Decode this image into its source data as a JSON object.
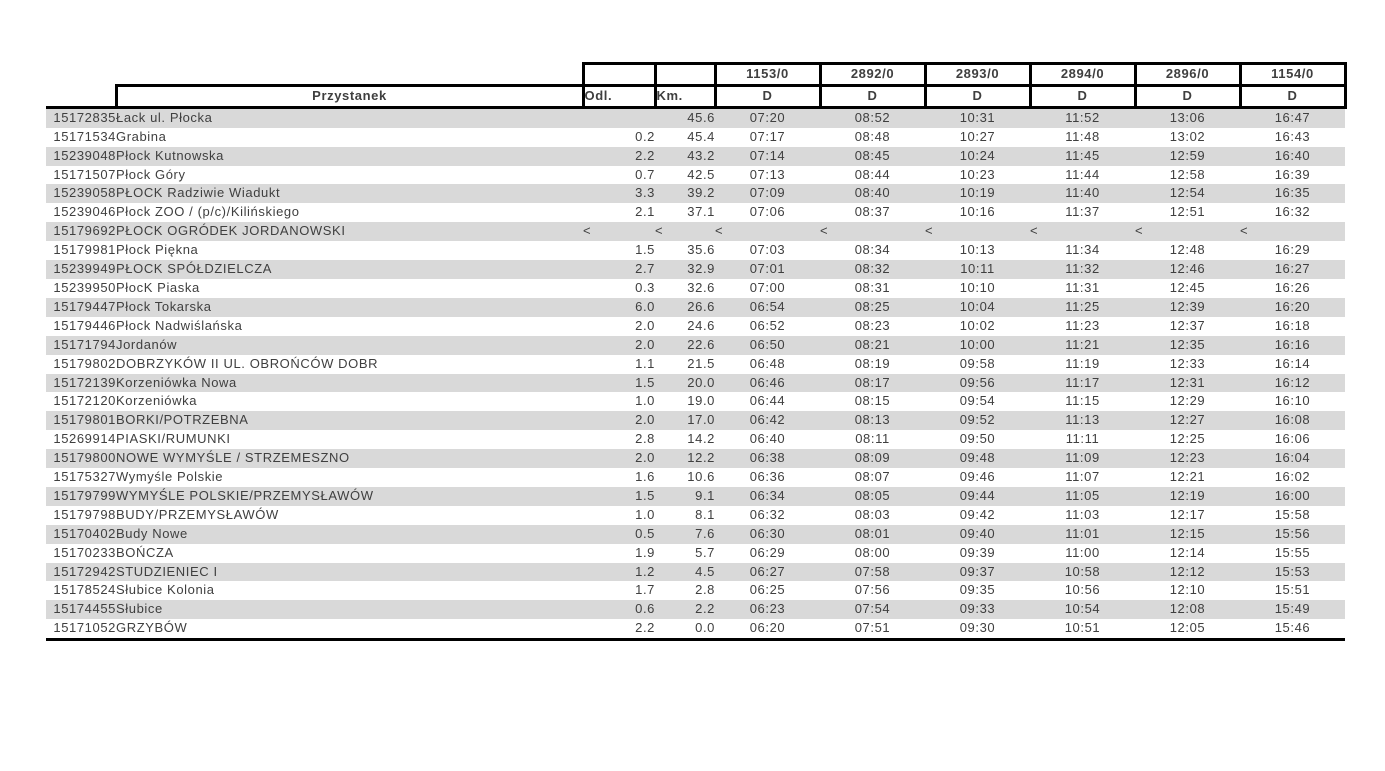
{
  "page": {
    "background": "#ffffff"
  },
  "colors": {
    "band": "#d9d9d9",
    "border": "#000000",
    "body_text": "#3f3f3f",
    "header_text": "#000000"
  },
  "table": {
    "skip_symbol": "<",
    "header": {
      "przystanek_label": "Przystanek",
      "odl_label": "Odl.",
      "km_label": "Km.",
      "courses": [
        {
          "number": "1153/0",
          "day": "D"
        },
        {
          "number": "2892/0",
          "day": "D"
        },
        {
          "number": "2893/0",
          "day": "D"
        },
        {
          "number": "2894/0",
          "day": "D"
        },
        {
          "number": "2896/0",
          "day": "D"
        },
        {
          "number": "1154/0",
          "day": "D"
        }
      ]
    },
    "rows": [
      {
        "id": "15172835",
        "stop": "Łack ul. Płocka",
        "odl": "",
        "km": "45.6",
        "times": [
          "07:20",
          "08:52",
          "10:31",
          "11:52",
          "13:06",
          "16:47"
        ]
      },
      {
        "id": "15171534",
        "stop": "Grabina",
        "odl": "0.2",
        "km": "45.4",
        "times": [
          "07:17",
          "08:48",
          "10:27",
          "11:48",
          "13:02",
          "16:43"
        ]
      },
      {
        "id": "15239048",
        "stop": "Płock Kutnowska",
        "odl": "2.2",
        "km": "43.2",
        "times": [
          "07:14",
          "08:45",
          "10:24",
          "11:45",
          "12:59",
          "16:40"
        ]
      },
      {
        "id": "15171507",
        "stop": "Płock Góry",
        "odl": "0.7",
        "km": "42.5",
        "times": [
          "07:13",
          "08:44",
          "10:23",
          "11:44",
          "12:58",
          "16:39"
        ]
      },
      {
        "id": "15239058",
        "stop": "PŁOCK Radziwie Wiadukt",
        "odl": "3.3",
        "km": "39.2",
        "times": [
          "07:09",
          "08:40",
          "10:19",
          "11:40",
          "12:54",
          "16:35"
        ]
      },
      {
        "id": "15239046",
        "stop": "Płock ZOO / (p/c)/Kilińskiego",
        "odl": "2.1",
        "km": "37.1",
        "times": [
          "07:06",
          "08:37",
          "10:16",
          "11:37",
          "12:51",
          "16:32"
        ]
      },
      {
        "id": "15179692",
        "stop": "PŁOCK OGRÓDEK JORDANOWSKI",
        "odl": "<",
        "km": "<",
        "times": [
          "<",
          "<",
          "<",
          "<",
          "<",
          "<"
        ]
      },
      {
        "id": "15179981",
        "stop": "Płock Piękna",
        "odl": "1.5",
        "km": "35.6",
        "times": [
          "07:03",
          "08:34",
          "10:13",
          "11:34",
          "12:48",
          "16:29"
        ]
      },
      {
        "id": "15239949",
        "stop": "PŁOCK SPÓŁDZIELCZA",
        "odl": "2.7",
        "km": "32.9",
        "times": [
          "07:01",
          "08:32",
          "10:11",
          "11:32",
          "12:46",
          "16:27"
        ]
      },
      {
        "id": "15239950",
        "stop": "PłocK Piaska",
        "odl": "0.3",
        "km": "32.6",
        "times": [
          "07:00",
          "08:31",
          "10:10",
          "11:31",
          "12:45",
          "16:26"
        ]
      },
      {
        "id": "15179447",
        "stop": "Płock Tokarska",
        "odl": "6.0",
        "km": "26.6",
        "times": [
          "06:54",
          "08:25",
          "10:04",
          "11:25",
          "12:39",
          "16:20"
        ]
      },
      {
        "id": "15179446",
        "stop": "Płock Nadwiślańska",
        "odl": "2.0",
        "km": "24.6",
        "times": [
          "06:52",
          "08:23",
          "10:02",
          "11:23",
          "12:37",
          "16:18"
        ]
      },
      {
        "id": "15171794",
        "stop": "Jordanów",
        "odl": "2.0",
        "km": "22.6",
        "times": [
          "06:50",
          "08:21",
          "10:00",
          "11:21",
          "12:35",
          "16:16"
        ]
      },
      {
        "id": "15179802",
        "stop": "DOBRZYKÓW II UL. OBROŃCÓW DOBR",
        "odl": "1.1",
        "km": "21.5",
        "times": [
          "06:48",
          "08:19",
          "09:58",
          "11:19",
          "12:33",
          "16:14"
        ]
      },
      {
        "id": "15172139",
        "stop": "Korzeniówka Nowa",
        "odl": "1.5",
        "km": "20.0",
        "times": [
          "06:46",
          "08:17",
          "09:56",
          "11:17",
          "12:31",
          "16:12"
        ]
      },
      {
        "id": "15172120",
        "stop": "Korzeniówka",
        "odl": "1.0",
        "km": "19.0",
        "times": [
          "06:44",
          "08:15",
          "09:54",
          "11:15",
          "12:29",
          "16:10"
        ]
      },
      {
        "id": "15179801",
        "stop": "BORKI/POTRZEBNA",
        "odl": "2.0",
        "km": "17.0",
        "times": [
          "06:42",
          "08:13",
          "09:52",
          "11:13",
          "12:27",
          "16:08"
        ]
      },
      {
        "id": "15269914",
        "stop": "PIASKI/RUMUNKI",
        "odl": "2.8",
        "km": "14.2",
        "times": [
          "06:40",
          "08:11",
          "09:50",
          "11:11",
          "12:25",
          "16:06"
        ]
      },
      {
        "id": "15179800",
        "stop": "NOWE WYMYŚLE / STRZEMESZNO",
        "odl": "2.0",
        "km": "12.2",
        "times": [
          "06:38",
          "08:09",
          "09:48",
          "11:09",
          "12:23",
          "16:04"
        ]
      },
      {
        "id": "15175327",
        "stop": "Wymyśle Polskie",
        "odl": "1.6",
        "km": "10.6",
        "times": [
          "06:36",
          "08:07",
          "09:46",
          "11:07",
          "12:21",
          "16:02"
        ]
      },
      {
        "id": "15179799",
        "stop": "WYMYŚLE POLSKIE/PRZEMYSŁAWÓW",
        "odl": "1.5",
        "km": "9.1",
        "times": [
          "06:34",
          "08:05",
          "09:44",
          "11:05",
          "12:19",
          "16:00"
        ]
      },
      {
        "id": "15179798",
        "stop": "BUDY/PRZEMYSŁAWÓW",
        "odl": "1.0",
        "km": "8.1",
        "times": [
          "06:32",
          "08:03",
          "09:42",
          "11:03",
          "12:17",
          "15:58"
        ]
      },
      {
        "id": "15170402",
        "stop": "Budy Nowe",
        "odl": "0.5",
        "km": "7.6",
        "times": [
          "06:30",
          "08:01",
          "09:40",
          "11:01",
          "12:15",
          "15:56"
        ]
      },
      {
        "id": "15170233",
        "stop": "BOŃCZA",
        "odl": "1.9",
        "km": "5.7",
        "times": [
          "06:29",
          "08:00",
          "09:39",
          "11:00",
          "12:14",
          "15:55"
        ]
      },
      {
        "id": "15172942",
        "stop": "STUDZIENIEC I",
        "odl": "1.2",
        "km": "4.5",
        "times": [
          "06:27",
          "07:58",
          "09:37",
          "10:58",
          "12:12",
          "15:53"
        ]
      },
      {
        "id": "15178524",
        "stop": "Słubice Kolonia",
        "odl": "1.7",
        "km": "2.8",
        "times": [
          "06:25",
          "07:56",
          "09:35",
          "10:56",
          "12:10",
          "15:51"
        ]
      },
      {
        "id": "15174455",
        "stop": "Słubice",
        "odl": "0.6",
        "km": "2.2",
        "times": [
          "06:23",
          "07:54",
          "09:33",
          "10:54",
          "12:08",
          "15:49"
        ]
      },
      {
        "id": "15171052",
        "stop": "GRZYBÓW",
        "odl": "2.2",
        "km": "0.0",
        "times": [
          "06:20",
          "07:51",
          "09:30",
          "10:51",
          "12:05",
          "15:46"
        ]
      }
    ]
  }
}
